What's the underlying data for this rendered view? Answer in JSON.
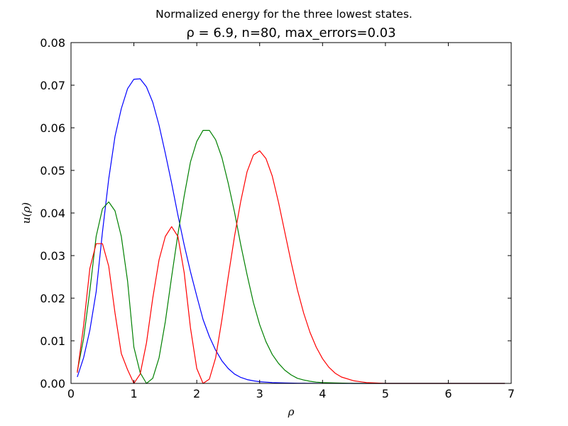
{
  "chart_data": {
    "type": "line",
    "suptitle": "Normalized energy for the three lowest states.",
    "title": "ρ = 6.9, n=80, max_errors=0.03",
    "xlabel": "ρ",
    "ylabel": "u(ρ)",
    "xlim": [
      0,
      7
    ],
    "ylim": [
      0,
      0.08
    ],
    "xticks": [
      0,
      1,
      2,
      3,
      4,
      5,
      6,
      7
    ],
    "yticks": [
      0,
      0.01,
      0.02,
      0.03,
      0.04,
      0.05,
      0.06,
      0.07,
      0.08
    ],
    "xtick_labels": [
      "0",
      "1",
      "2",
      "3",
      "4",
      "5",
      "6",
      "7"
    ],
    "ytick_labels": [
      "0.00",
      "0.01",
      "0.02",
      "0.03",
      "0.04",
      "0.05",
      "0.06",
      "0.07",
      "0.08"
    ],
    "grid": false,
    "legend": "none",
    "series": [
      {
        "color": "#0000ff",
        "x": [
          0.1,
          0.2,
          0.3,
          0.4,
          0.5,
          0.6,
          0.7,
          0.8,
          0.9,
          1.0,
          1.1,
          1.2,
          1.3,
          1.4,
          1.5,
          1.6,
          1.7,
          1.8,
          1.9,
          2.0,
          2.1,
          2.2,
          2.3,
          2.4,
          2.5,
          2.6,
          2.7,
          2.8,
          2.9,
          3.0,
          3.2,
          3.4,
          3.6,
          3.8,
          4.0,
          4.5,
          5.0,
          6.9
        ],
        "y": [
          0.0015,
          0.006,
          0.0125,
          0.0215,
          0.0355,
          0.048,
          0.058,
          0.0645,
          0.0692,
          0.0714,
          0.0715,
          0.0696,
          0.066,
          0.0606,
          0.054,
          0.047,
          0.0395,
          0.0325,
          0.0262,
          0.0205,
          0.015,
          0.011,
          0.0078,
          0.0053,
          0.0035,
          0.0022,
          0.0014,
          0.0009,
          0.0006,
          0.0004,
          0.0002,
          0.0001,
          5e-05,
          2e-05,
          1e-05,
          0.0,
          0.0,
          0.0
        ]
      },
      {
        "color": "#008000",
        "x": [
          0.1,
          0.2,
          0.3,
          0.4,
          0.5,
          0.6,
          0.7,
          0.8,
          0.9,
          1.0,
          1.1,
          1.2,
          1.3,
          1.4,
          1.5,
          1.6,
          1.7,
          1.8,
          1.9,
          2.0,
          2.1,
          2.2,
          2.3,
          2.4,
          2.5,
          2.6,
          2.7,
          2.8,
          2.9,
          3.0,
          3.1,
          3.2,
          3.3,
          3.4,
          3.5,
          3.6,
          3.7,
          3.8,
          3.9,
          4.0,
          4.2,
          4.5,
          6.9
        ],
        "y": [
          0.0028,
          0.0105,
          0.0218,
          0.0345,
          0.041,
          0.0426,
          0.0405,
          0.0345,
          0.024,
          0.0085,
          0.0025,
          0.0,
          0.0012,
          0.006,
          0.0145,
          0.025,
          0.035,
          0.044,
          0.052,
          0.0568,
          0.0594,
          0.0594,
          0.0572,
          0.053,
          0.047,
          0.0402,
          0.0325,
          0.0255,
          0.019,
          0.0138,
          0.0098,
          0.0068,
          0.0047,
          0.0031,
          0.002,
          0.0012,
          0.0008,
          0.0005,
          0.0003,
          0.0002,
          0.0001,
          0.0,
          0.0
        ]
      },
      {
        "color": "#ff0000",
        "x": [
          0.1,
          0.2,
          0.3,
          0.4,
          0.5,
          0.6,
          0.7,
          0.8,
          0.9,
          1.0,
          1.1,
          1.2,
          1.3,
          1.4,
          1.5,
          1.6,
          1.7,
          1.8,
          1.9,
          2.0,
          2.1,
          2.2,
          2.3,
          2.4,
          2.5,
          2.6,
          2.7,
          2.8,
          2.9,
          3.0,
          3.1,
          3.2,
          3.3,
          3.4,
          3.5,
          3.6,
          3.7,
          3.8,
          3.9,
          4.0,
          4.1,
          4.2,
          4.3,
          4.5,
          4.7,
          5.0,
          6.9
        ],
        "y": [
          0.0025,
          0.0135,
          0.027,
          0.0328,
          0.0328,
          0.0275,
          0.0165,
          0.007,
          0.0032,
          0.0,
          0.0022,
          0.0095,
          0.02,
          0.029,
          0.0345,
          0.0368,
          0.0345,
          0.026,
          0.013,
          0.0035,
          0.0,
          0.001,
          0.006,
          0.015,
          0.025,
          0.0345,
          0.0428,
          0.0497,
          0.0536,
          0.0546,
          0.0528,
          0.0487,
          0.0425,
          0.0355,
          0.0285,
          0.022,
          0.0165,
          0.012,
          0.0085,
          0.0058,
          0.0038,
          0.0024,
          0.0015,
          0.0006,
          0.0002,
          0.0,
          0.0
        ]
      }
    ]
  }
}
